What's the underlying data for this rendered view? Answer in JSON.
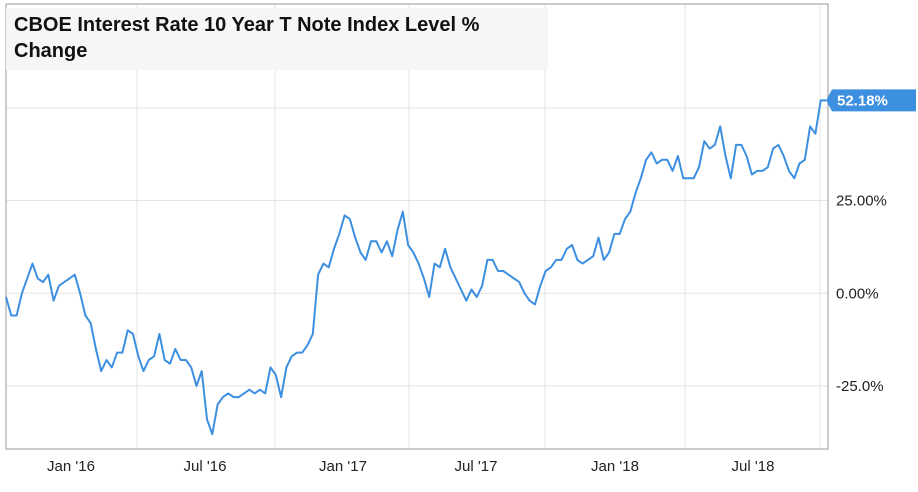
{
  "chart_data": {
    "type": "line",
    "title": "CBOE Interest Rate 10 Year T Note Index Level % Change",
    "xlabel": "",
    "ylabel": "",
    "x_ticks": [
      "Jan '16",
      "Jul '16",
      "Jan '17",
      "Jul '17",
      "Jan '18",
      "Jul '18"
    ],
    "y_ticks": [
      "25.00%",
      "0.00%",
      "-25.0%"
    ],
    "y_tick_values": [
      25,
      0,
      -25
    ],
    "ylim": [
      -42,
      78
    ],
    "grid": true,
    "line_color": "#3d8fe0",
    "last_value_label": "52.18%",
    "series": [
      {
        "values": [
          -1,
          -6,
          -6,
          0,
          4,
          8,
          4,
          3,
          5,
          -2,
          2,
          3,
          4,
          5,
          0,
          -6,
          -8,
          -15,
          -21,
          -18,
          -20,
          -16,
          -16,
          -10,
          -11,
          -17,
          -21,
          -18,
          -17,
          -11,
          -18,
          -19,
          -15,
          -18,
          -18,
          -20,
          -25,
          -21,
          -34,
          -38,
          -30,
          -28,
          -27,
          -28,
          -28,
          -27,
          -26,
          -27,
          -26,
          -27,
          -20,
          -22,
          -28,
          -20,
          -17,
          -16,
          -16,
          -14,
          -11,
          5,
          8,
          7,
          12,
          16,
          21,
          20,
          15,
          11,
          9,
          14,
          14,
          11,
          14,
          10,
          17,
          22,
          13,
          11,
          8,
          4,
          -1,
          8,
          7,
          12,
          7,
          4,
          1,
          -2,
          1,
          -1,
          2,
          9,
          9,
          6,
          6,
          5,
          4,
          3,
          0,
          -2,
          -3,
          2,
          6,
          7,
          9,
          9,
          12,
          13,
          9,
          8,
          9,
          10,
          15,
          9,
          11,
          16,
          16,
          20,
          22,
          27,
          31,
          36,
          38,
          35,
          36,
          36,
          33,
          37,
          31,
          31,
          31,
          34,
          41,
          39,
          40,
          45,
          37,
          31,
          40,
          40,
          37,
          32,
          33,
          33,
          34,
          39,
          40,
          37,
          33,
          31,
          35,
          36,
          45,
          43,
          52,
          52
        ]
      }
    ]
  }
}
